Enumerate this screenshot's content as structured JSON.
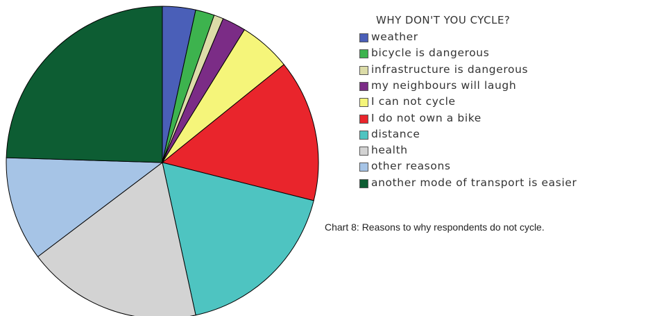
{
  "chart_data": {
    "type": "pie",
    "title": "WHY DON'T YOU CYCLE?",
    "start_angle_deg": 0,
    "direction": "clockwise",
    "legend_position": "right",
    "slices": [
      {
        "label": "weather",
        "value": 3.5,
        "color": "#4a5fb8"
      },
      {
        "label": "bicycle is dangerous",
        "value": 2.0,
        "color": "#3db34e"
      },
      {
        "label": "infrastructure is dangerous",
        "value": 1.0,
        "color": "#dcdca8"
      },
      {
        "label": "my neighbours will laugh",
        "value": 2.5,
        "color": "#7b2c86"
      },
      {
        "label": "I can not cycle",
        "value": 5.5,
        "color": "#f5f57a"
      },
      {
        "label": "I do not own a bike",
        "value": 15.0,
        "color": "#e9252c"
      },
      {
        "label": "distance",
        "value": 18.0,
        "color": "#4ec4c1"
      },
      {
        "label": "health",
        "value": 18.5,
        "color": "#d3d3d3"
      },
      {
        "label": "other reasons",
        "value": 11.0,
        "color": "#a6c4e6"
      },
      {
        "label": "another mode of transport is easier",
        "value": 25.0,
        "color": "#0d5d33"
      }
    ]
  },
  "caption": "Chart 8: Reasons to why respondents do not cycle."
}
